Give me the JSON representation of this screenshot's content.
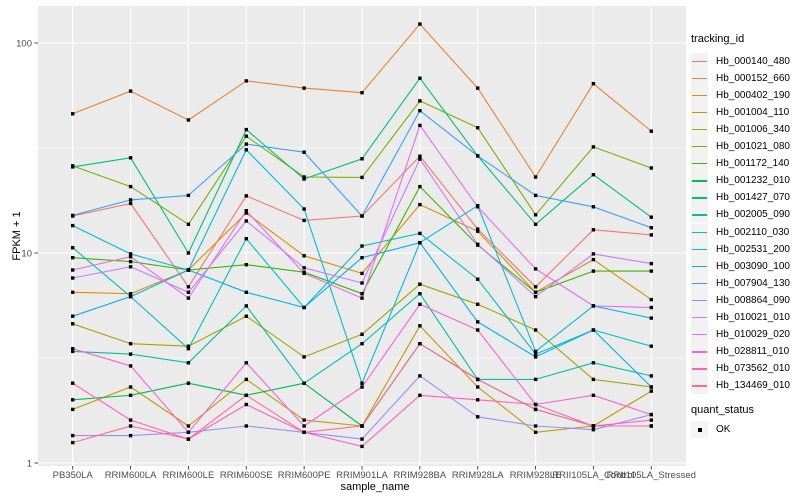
{
  "style": {
    "figure_background": "#FFFFFF",
    "panel_background": "#EBEBEB",
    "grid_color": "#FFFFFF",
    "tick_mark_color": "#333333",
    "tick_label_color": "#4D4D4D",
    "point_color": "#000000",
    "legend_key_background": "#F2F2F2"
  },
  "chart_data": {
    "type": "line",
    "title": "",
    "xlabel": "sample_name",
    "ylabel": "FPKM + 1",
    "y_scale": "log10",
    "ylim": [
      0.95,
      150
    ],
    "y_ticks": [
      1,
      10,
      100
    ],
    "y_minor_gridlines": [
      3.1623,
      31.623
    ],
    "grid": "on",
    "point_shape": "square",
    "categories": [
      "PB350LA",
      "RRIM600LA",
      "RRIM600LE",
      "RRIM600SE",
      "RRIM600PE",
      "RRIM901LA",
      "RRIM928BA",
      "RRIM928LA",
      "RRIM928LE",
      "RRII105LA_Control",
      "RRII105LA_Stressed"
    ],
    "legend": {
      "title": "tracking_id",
      "position": "right"
    },
    "quant_legend": {
      "title": "quant_status",
      "items": [
        {
          "label": "OK",
          "shape": "square",
          "color": "#000000"
        }
      ]
    },
    "series": [
      {
        "name": "Hb_000140_480",
        "color": "#F8766D",
        "values": [
          15.0,
          17.2,
          6.9,
          18.7,
          14.3,
          15.0,
          28.9,
          13.0,
          6.9,
          12.9,
          12.2
        ]
      },
      {
        "name": "Hb_000152_660",
        "color": "#EA8331",
        "values": [
          46,
          59,
          43,
          66,
          61,
          58,
          123,
          61,
          23,
          64,
          38
        ]
      },
      {
        "name": "Hb_000402_190",
        "color": "#D89000",
        "values": [
          6.5,
          6.4,
          8.3,
          15.5,
          9.7,
          8.0,
          17.0,
          12.7,
          6.5,
          9.3,
          6.0
        ]
      },
      {
        "name": "Hb_001004_110",
        "color": "#C09B00",
        "values": [
          1.8,
          2.3,
          1.5,
          2.5,
          1.6,
          1.5,
          4.5,
          2.3,
          1.4,
          1.5,
          2.2
        ]
      },
      {
        "name": "Hb_001006_340",
        "color": "#A3A500",
        "values": [
          4.6,
          3.7,
          3.6,
          5.0,
          3.2,
          4.1,
          7.1,
          5.7,
          4.3,
          2.5,
          2.3
        ]
      },
      {
        "name": "Hb_001021_080",
        "color": "#7CAE00",
        "values": [
          26,
          20.7,
          13.7,
          36,
          23,
          22.9,
          53,
          39.5,
          15.2,
          32,
          25.4
        ]
      },
      {
        "name": "Hb_001172_140",
        "color": "#39B600",
        "values": [
          9.5,
          9.1,
          8.3,
          8.8,
          8.1,
          6.4,
          20.7,
          10.9,
          6.5,
          8.2,
          8.2
        ]
      },
      {
        "name": "Hb_001232_010",
        "color": "#00BB4E",
        "values": [
          2.0,
          2.1,
          2.4,
          2.1,
          2.4,
          1.5,
          3.7,
          2.5,
          1.8,
          1.5,
          1.5
        ]
      },
      {
        "name": "Hb_001427_070",
        "color": "#00BF7D",
        "values": [
          25.7,
          28.4,
          10.0,
          38.7,
          22.5,
          28.1,
          68,
          29,
          13.7,
          23.6,
          14.8
        ]
      },
      {
        "name": "Hb_002005_090",
        "color": "#00C1A3",
        "values": [
          3.4,
          3.3,
          3.0,
          5.6,
          2.4,
          3.7,
          6.4,
          2.5,
          2.5,
          3.0,
          2.6
        ]
      },
      {
        "name": "Hb_002110_030",
        "color": "#00BFC4",
        "values": [
          10.6,
          6.2,
          3.5,
          11.7,
          5.5,
          10.8,
          12.4,
          7.5,
          3.3,
          4.3,
          3.6
        ]
      },
      {
        "name": "Hb_002531_200",
        "color": "#00BAE0",
        "values": [
          13.5,
          9.9,
          8.3,
          31,
          16.2,
          2.4,
          11.2,
          16.8,
          3.4,
          5.6,
          4.9
        ]
      },
      {
        "name": "Hb_003090_100",
        "color": "#00B0F6",
        "values": [
          5.0,
          6.2,
          8.3,
          6.5,
          5.5,
          9.5,
          11.2,
          4.7,
          3.2,
          4.3,
          2.3
        ]
      },
      {
        "name": "Hb_007904_130",
        "color": "#35A2FF",
        "values": [
          15.1,
          17.9,
          18.8,
          33,
          30.2,
          15.0,
          47.6,
          29,
          18.8,
          16.6,
          13.2
        ]
      },
      {
        "name": "Hb_008864_090",
        "color": "#9590FF",
        "values": [
          1.35,
          1.35,
          1.4,
          1.5,
          1.4,
          1.3,
          2.6,
          1.66,
          1.5,
          1.44,
          1.7
        ]
      },
      {
        "name": "Hb_010021_010",
        "color": "#C77CFF",
        "values": [
          7.6,
          8.6,
          6.5,
          14.2,
          8.5,
          7.2,
          28,
          11.0,
          6.2,
          9.9,
          8.9
        ]
      },
      {
        "name": "Hb_010029_020",
        "color": "#E76BF3",
        "values": [
          8.3,
          9.6,
          6.1,
          15.9,
          8.0,
          6.1,
          40.5,
          16.6,
          8.4,
          5.6,
          5.5
        ]
      },
      {
        "name": "Hb_028811_010",
        "color": "#FA62DB",
        "values": [
          3.5,
          2.9,
          1.4,
          3.0,
          1.5,
          2.3,
          5.7,
          4.3,
          1.9,
          2.1,
          1.7
        ]
      },
      {
        "name": "Hb_073562_010",
        "color": "#FF62BC",
        "values": [
          2.4,
          1.6,
          1.3,
          1.9,
          1.4,
          1.2,
          2.1,
          2.0,
          1.9,
          1.5,
          1.6
        ]
      },
      {
        "name": "Hb_134469_010",
        "color": "#FF6A98",
        "values": [
          1.25,
          1.5,
          1.3,
          2.1,
          1.4,
          1.5,
          3.7,
          2.5,
          1.8,
          1.5,
          1.5
        ]
      }
    ]
  }
}
